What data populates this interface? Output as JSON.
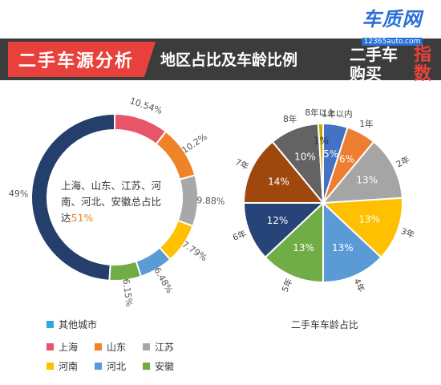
{
  "header": {
    "title": "二手车源分析",
    "subtitle": "地区占比及车龄比例",
    "logo_site": "车质网",
    "logo_url": "12365auto.com",
    "logo_line1": "二手车",
    "logo_line2": "购买",
    "logo_right1": "指",
    "logo_right2": "数"
  },
  "center_note": {
    "prefix": "上海、山东、江苏、河南、河北、安徽总占比达",
    "highlight": "51%"
  },
  "legend": {
    "items": [
      {
        "label": "其他城市",
        "color": "#2fa8dc"
      },
      {
        "label": "上海",
        "color": "#e8556a"
      },
      {
        "label": "山东",
        "color": "#f08227"
      },
      {
        "label": "江苏",
        "color": "#a8a8a8"
      },
      {
        "label": "河南",
        "color": "#ffc000"
      },
      {
        "label": "河北",
        "color": "#5b9bd5"
      },
      {
        "label": "安徽",
        "color": "#70ad47"
      }
    ]
  },
  "pie2": {
    "caption": "二手车车龄占比"
  },
  "chart_data": [
    {
      "type": "pie",
      "variant": "donut",
      "slices": [
        {
          "name": "上海",
          "value": 10.54,
          "label": "10.54%",
          "color": "#e8556a"
        },
        {
          "name": "山东",
          "value": 10.2,
          "label": "10.2%",
          "color": "#f08227"
        },
        {
          "name": "江苏",
          "value": 9.88,
          "label": "9.88%",
          "color": "#a8a8a8"
        },
        {
          "name": "河南",
          "value": 7.79,
          "label": "7.79%",
          "color": "#ffc000"
        },
        {
          "name": "河北",
          "value": 6.48,
          "label": "6.48%",
          "color": "#5b9bd5"
        },
        {
          "name": "安徽",
          "value": 6.15,
          "label": "6.15%",
          "color": "#70ad47"
        },
        {
          "name": "其他城市",
          "value": 49,
          "label": "49%",
          "color": "#243f6b"
        }
      ]
    },
    {
      "type": "pie",
      "slices": [
        {
          "name": "1年以内",
          "value": 5,
          "label": "5%",
          "color": "#4472c4"
        },
        {
          "name": "1年",
          "value": 6,
          "label": "6%",
          "color": "#ed7d31"
        },
        {
          "name": "2年",
          "value": 13,
          "label": "13%",
          "color": "#a5a5a5"
        },
        {
          "name": "3年",
          "value": 13,
          "label": "13%",
          "color": "#ffc000"
        },
        {
          "name": "4年",
          "value": 13,
          "label": "13%",
          "color": "#5b9bd5"
        },
        {
          "name": "5年",
          "value": 13,
          "label": "13%",
          "color": "#70ad47"
        },
        {
          "name": "6年",
          "value": 12,
          "label": "12%",
          "color": "#264478"
        },
        {
          "name": "7年",
          "value": 14,
          "label": "14%",
          "color": "#9e480e"
        },
        {
          "name": "8年",
          "value": 10,
          "label": "10%",
          "color": "#636363"
        },
        {
          "name": "8年以上",
          "value": 1,
          "label": "1%",
          "color": "#c9a800"
        }
      ]
    }
  ]
}
